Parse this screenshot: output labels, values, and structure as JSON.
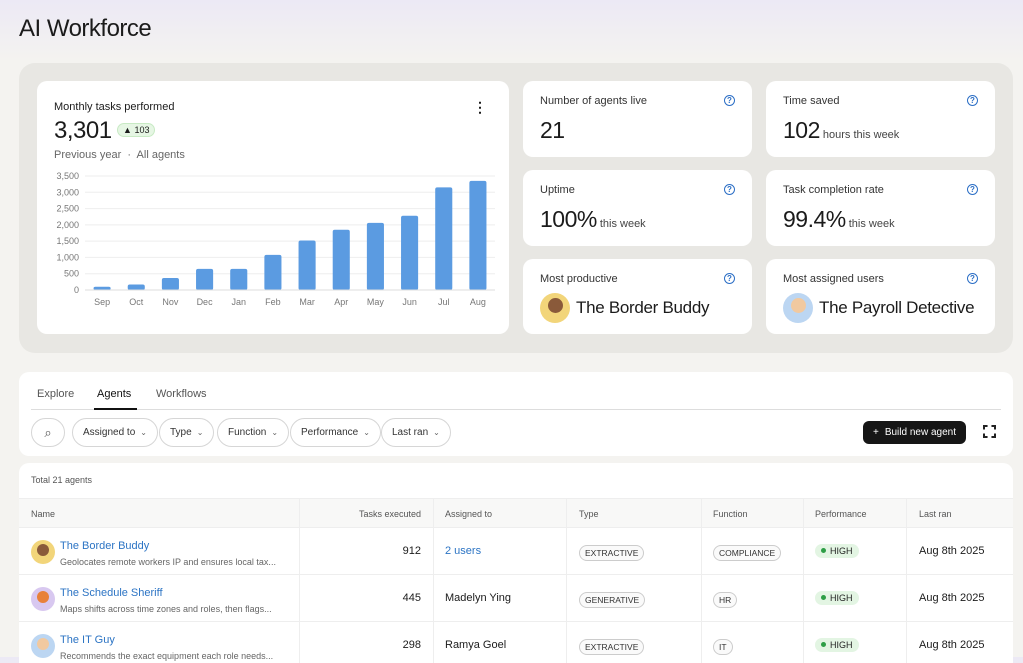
{
  "title": "AI Workforce",
  "chart_card": {
    "title": "Monthly tasks performed",
    "value": "3,301",
    "delta": "103",
    "sub1": "Previous year",
    "sub2": "All agents"
  },
  "chart_data": {
    "type": "bar",
    "categories": [
      "Sep",
      "Oct",
      "Nov",
      "Dec",
      "Jan",
      "Feb",
      "Mar",
      "Apr",
      "May",
      "Jun",
      "Jul",
      "Aug"
    ],
    "values": [
      100,
      170,
      370,
      650,
      650,
      1080,
      1520,
      1850,
      2060,
      2280,
      3150,
      3350
    ],
    "ylim": [
      0,
      3500
    ],
    "yticks": [
      "0",
      "500",
      "1,000",
      "1,500",
      "2,000",
      "2,500",
      "3,000",
      "3,500"
    ],
    "grid": true,
    "color": "#5b9be1"
  },
  "stats": [
    {
      "label": "Number of agents live",
      "value": "21",
      "unit": ""
    },
    {
      "label": "Time saved",
      "value": "102",
      "unit": "hours this week"
    },
    {
      "label": "Uptime",
      "value": "100%",
      "unit": "this week"
    },
    {
      "label": "Task completion rate",
      "value": "99.4%",
      "unit": "this week"
    },
    {
      "label": "Most productive",
      "value": "The Border Buddy"
    },
    {
      "label": "Most assigned users",
      "value": "The Payroll Detective"
    }
  ],
  "tabs": [
    "Explore",
    "Agents",
    "Workflows"
  ],
  "active_tab": "Agents",
  "filters": [
    "Assigned to",
    "Type",
    "Function",
    "Performance",
    "Last ran"
  ],
  "build_button": "Build new agent",
  "total": "Total 21 agents",
  "columns": [
    "Name",
    "Tasks executed",
    "Assigned to",
    "Type",
    "Function",
    "Performance",
    "Last ran"
  ],
  "rows": [
    {
      "name": "The Border Buddy",
      "desc": "Geolocates remote workers IP and ensures local tax...",
      "tasks": "912",
      "assigned": "2 users",
      "type": "EXTRACTIVE",
      "function": "COMPLIANCE",
      "performance": "HIGH",
      "last_ran": "Aug 8th 2025"
    },
    {
      "name": "The Schedule Sheriff",
      "desc": "Maps shifts across time zones and roles, then flags...",
      "tasks": "445",
      "assigned": "Madelyn Ying",
      "type": "GENERATIVE",
      "function": "HR",
      "performance": "HIGH",
      "last_ran": "Aug 8th 2025"
    },
    {
      "name": "The IT Guy",
      "desc": "Recommends the exact equipment each role needs...",
      "tasks": "298",
      "assigned": "Ramya Goel",
      "type": "EXTRACTIVE",
      "function": "IT",
      "performance": "HIGH",
      "last_ran": "Aug 8th 2025"
    }
  ]
}
